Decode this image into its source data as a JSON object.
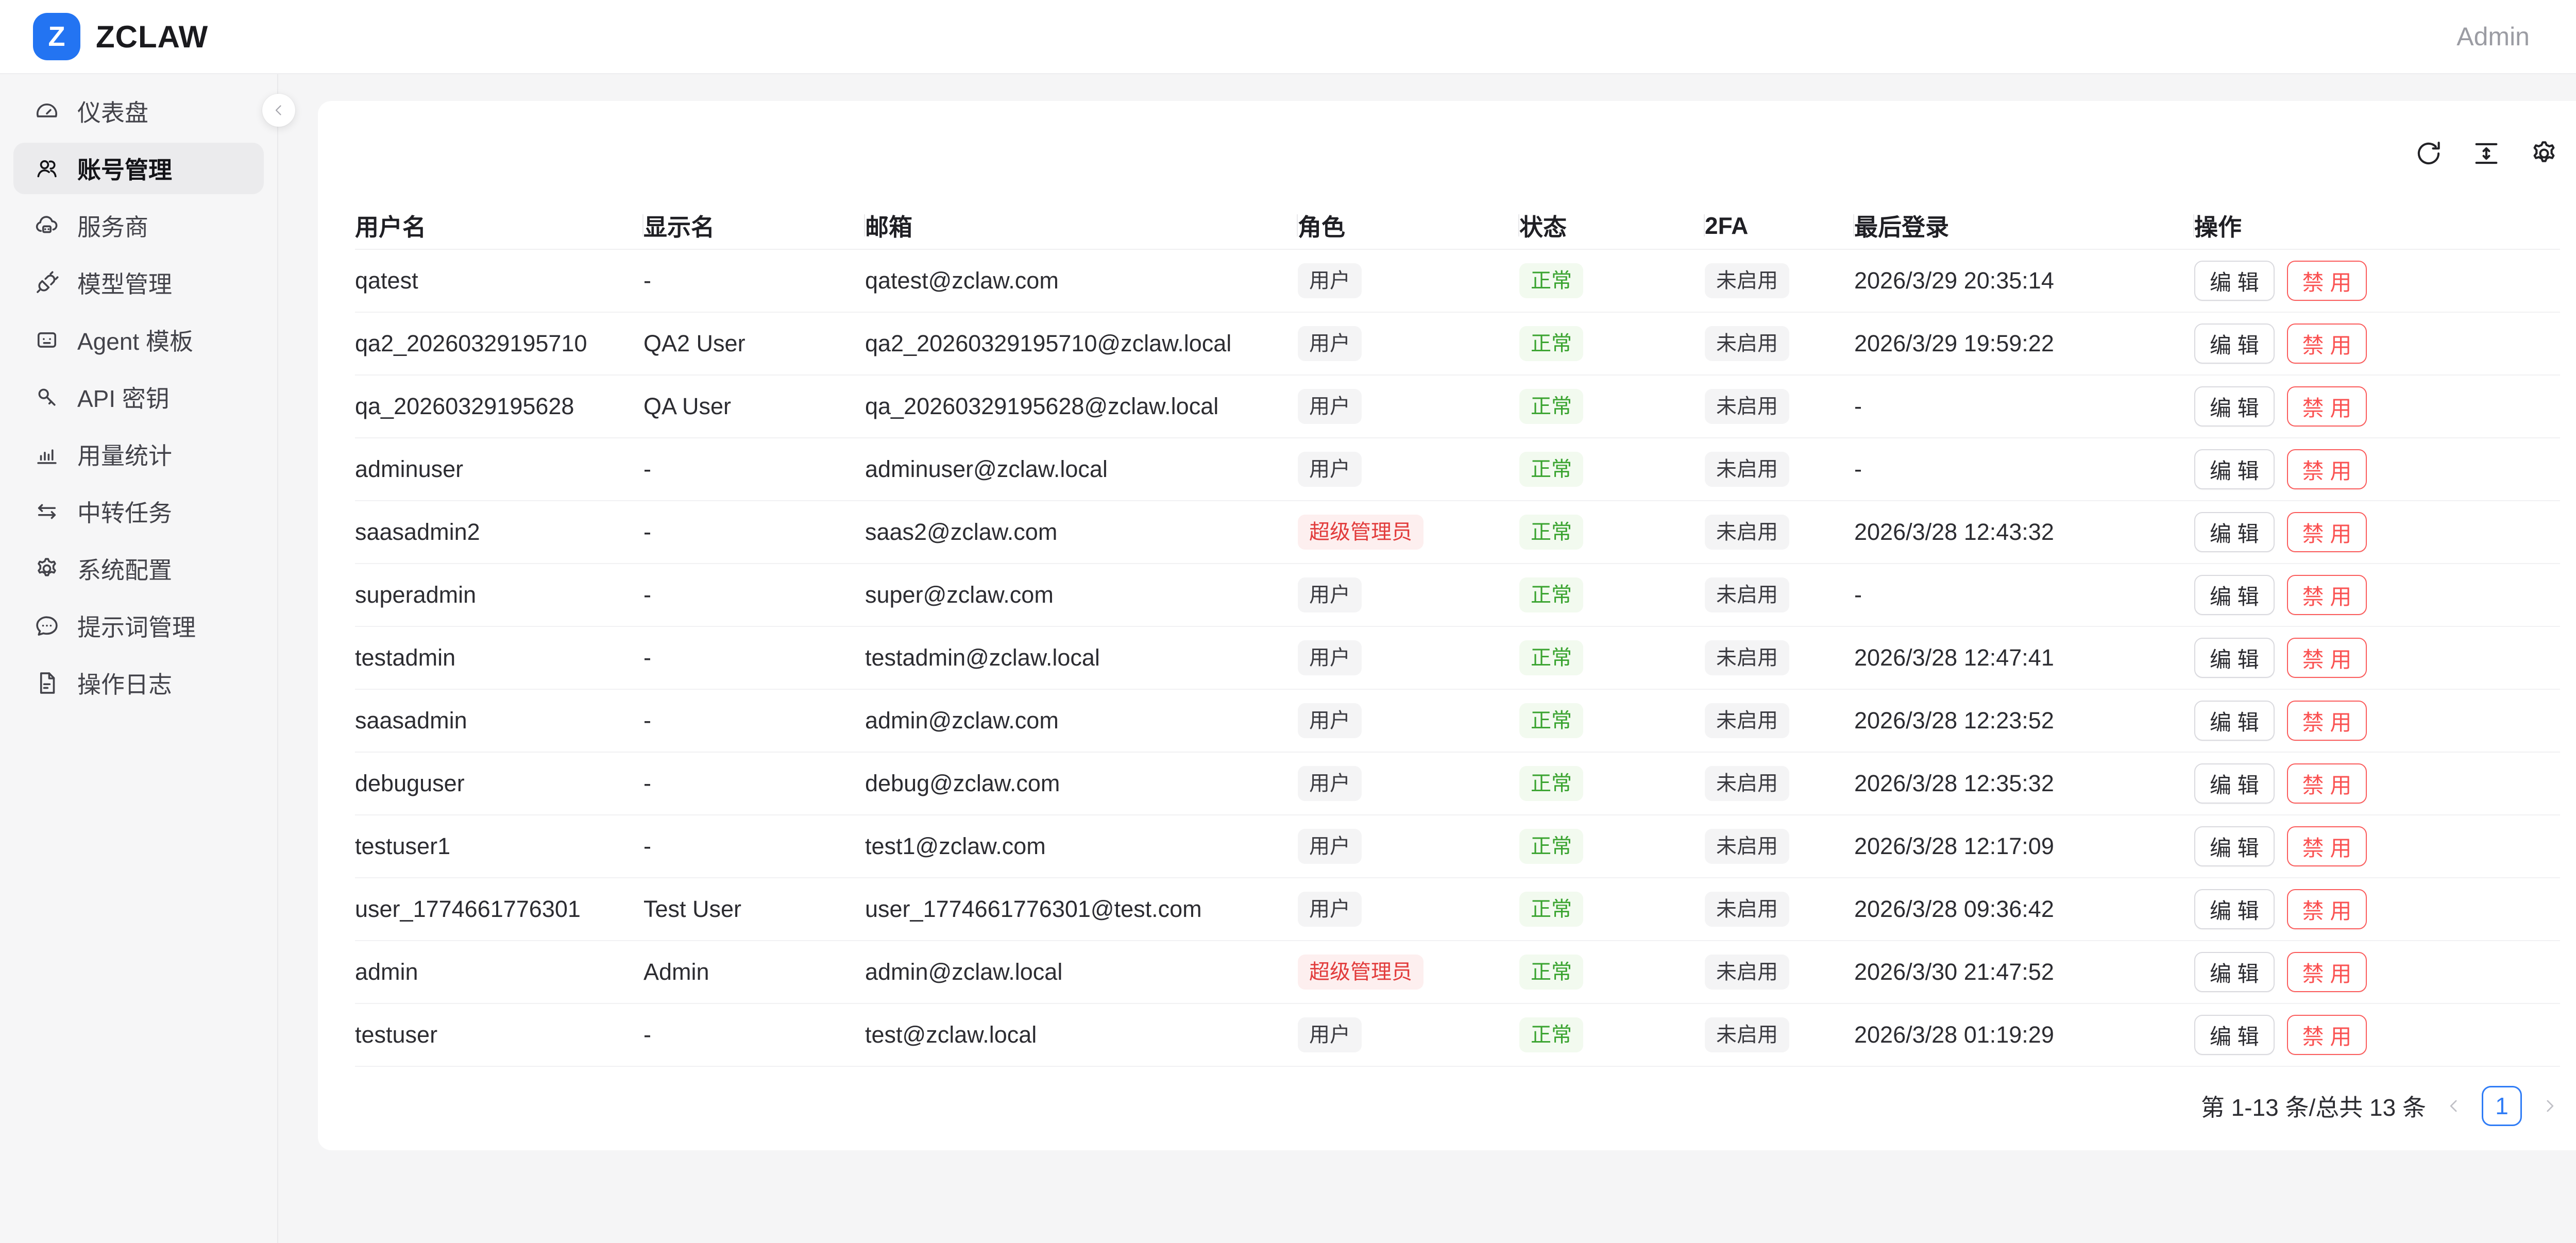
{
  "brand": {
    "logo_letter": "Z",
    "name": "ZCLAW",
    "logo_color": "#2374f2"
  },
  "header": {
    "user_label": "Admin"
  },
  "sidebar": {
    "collapse_icon": "chevron-left-icon",
    "items": [
      {
        "id": "dashboard",
        "label": "仪表盘",
        "icon": "dashboard-icon",
        "active": false
      },
      {
        "id": "accounts",
        "label": "账号管理",
        "icon": "users-icon",
        "active": true
      },
      {
        "id": "providers",
        "label": "服务商",
        "icon": "cloud-server-icon",
        "active": false
      },
      {
        "id": "models",
        "label": "模型管理",
        "icon": "plug-icon",
        "active": false
      },
      {
        "id": "agent-templates",
        "label": "Agent 模板",
        "icon": "robot-icon",
        "active": false
      },
      {
        "id": "api-keys",
        "label": "API 密钥",
        "icon": "key-icon",
        "active": false
      },
      {
        "id": "usage-stats",
        "label": "用量统计",
        "icon": "bar-chart-icon",
        "active": false
      },
      {
        "id": "relay-tasks",
        "label": "中转任务",
        "icon": "swap-icon",
        "active": false
      },
      {
        "id": "system-config",
        "label": "系统配置",
        "icon": "gear-icon",
        "active": false
      },
      {
        "id": "prompts",
        "label": "提示词管理",
        "icon": "comment-icon",
        "active": false
      },
      {
        "id": "operation-logs",
        "label": "操作日志",
        "icon": "document-icon",
        "active": false
      }
    ]
  },
  "toolbar": {
    "icons": [
      "refresh-icon",
      "row-height-icon",
      "settings-icon"
    ]
  },
  "table": {
    "columns": [
      "用户名",
      "显示名",
      "邮箱",
      "角色",
      "状态",
      "2FA",
      "最后登录",
      "操作"
    ],
    "action_labels": {
      "edit": "编 辑",
      "disable": "禁 用"
    },
    "rows": [
      {
        "username": "qatest",
        "display_name": "-",
        "email": "qatest@zclaw.com",
        "role": "用户",
        "role_variant": "neutral",
        "status": "正常",
        "twofa": "未启用",
        "last_login": "2026/3/29 20:35:14"
      },
      {
        "username": "qa2_20260329195710",
        "display_name": "QA2 User",
        "email": "qa2_20260329195710@zclaw.local",
        "role": "用户",
        "role_variant": "neutral",
        "status": "正常",
        "twofa": "未启用",
        "last_login": "2026/3/29 19:59:22"
      },
      {
        "username": "qa_20260329195628",
        "display_name": "QA User",
        "email": "qa_20260329195628@zclaw.local",
        "role": "用户",
        "role_variant": "neutral",
        "status": "正常",
        "twofa": "未启用",
        "last_login": "-"
      },
      {
        "username": "adminuser",
        "display_name": "-",
        "email": "adminuser@zclaw.local",
        "role": "用户",
        "role_variant": "neutral",
        "status": "正常",
        "twofa": "未启用",
        "last_login": "-"
      },
      {
        "username": "saasadmin2",
        "display_name": "-",
        "email": "saas2@zclaw.com",
        "role": "超级管理员",
        "role_variant": "danger",
        "status": "正常",
        "twofa": "未启用",
        "last_login": "2026/3/28 12:43:32"
      },
      {
        "username": "superadmin",
        "display_name": "-",
        "email": "super@zclaw.com",
        "role": "用户",
        "role_variant": "neutral",
        "status": "正常",
        "twofa": "未启用",
        "last_login": "-"
      },
      {
        "username": "testadmin",
        "display_name": "-",
        "email": "testadmin@zclaw.local",
        "role": "用户",
        "role_variant": "neutral",
        "status": "正常",
        "twofa": "未启用",
        "last_login": "2026/3/28 12:47:41"
      },
      {
        "username": "saasadmin",
        "display_name": "-",
        "email": "admin@zclaw.com",
        "role": "用户",
        "role_variant": "neutral",
        "status": "正常",
        "twofa": "未启用",
        "last_login": "2026/3/28 12:23:52"
      },
      {
        "username": "debuguser",
        "display_name": "-",
        "email": "debug@zclaw.com",
        "role": "用户",
        "role_variant": "neutral",
        "status": "正常",
        "twofa": "未启用",
        "last_login": "2026/3/28 12:35:32"
      },
      {
        "username": "testuser1",
        "display_name": "-",
        "email": "test1@zclaw.com",
        "role": "用户",
        "role_variant": "neutral",
        "status": "正常",
        "twofa": "未启用",
        "last_login": "2026/3/28 12:17:09"
      },
      {
        "username": "user_1774661776301",
        "display_name": "Test User",
        "email": "user_1774661776301@test.com",
        "role": "用户",
        "role_variant": "neutral",
        "status": "正常",
        "twofa": "未启用",
        "last_login": "2026/3/28 09:36:42"
      },
      {
        "username": "admin",
        "display_name": "Admin",
        "email": "admin@zclaw.local",
        "role": "超级管理员",
        "role_variant": "danger",
        "status": "正常",
        "twofa": "未启用",
        "last_login": "2026/3/30 21:47:52"
      },
      {
        "username": "testuser",
        "display_name": "-",
        "email": "test@zclaw.local",
        "role": "用户",
        "role_variant": "neutral",
        "status": "正常",
        "twofa": "未启用",
        "last_login": "2026/3/28 01:19:29"
      }
    ]
  },
  "pagination": {
    "summary": "第 1-13 条/总共 13 条",
    "prev_icon": "chevron-left-icon",
    "current_page": "1",
    "next_icon": "chevron-right-icon"
  },
  "colors": {
    "accent_blue": "#2f7cf6",
    "success_green": "#39a32f",
    "danger_red": "#e23c3c",
    "button_danger_red": "#fa5252",
    "page_bg": "#f5f5f6"
  }
}
